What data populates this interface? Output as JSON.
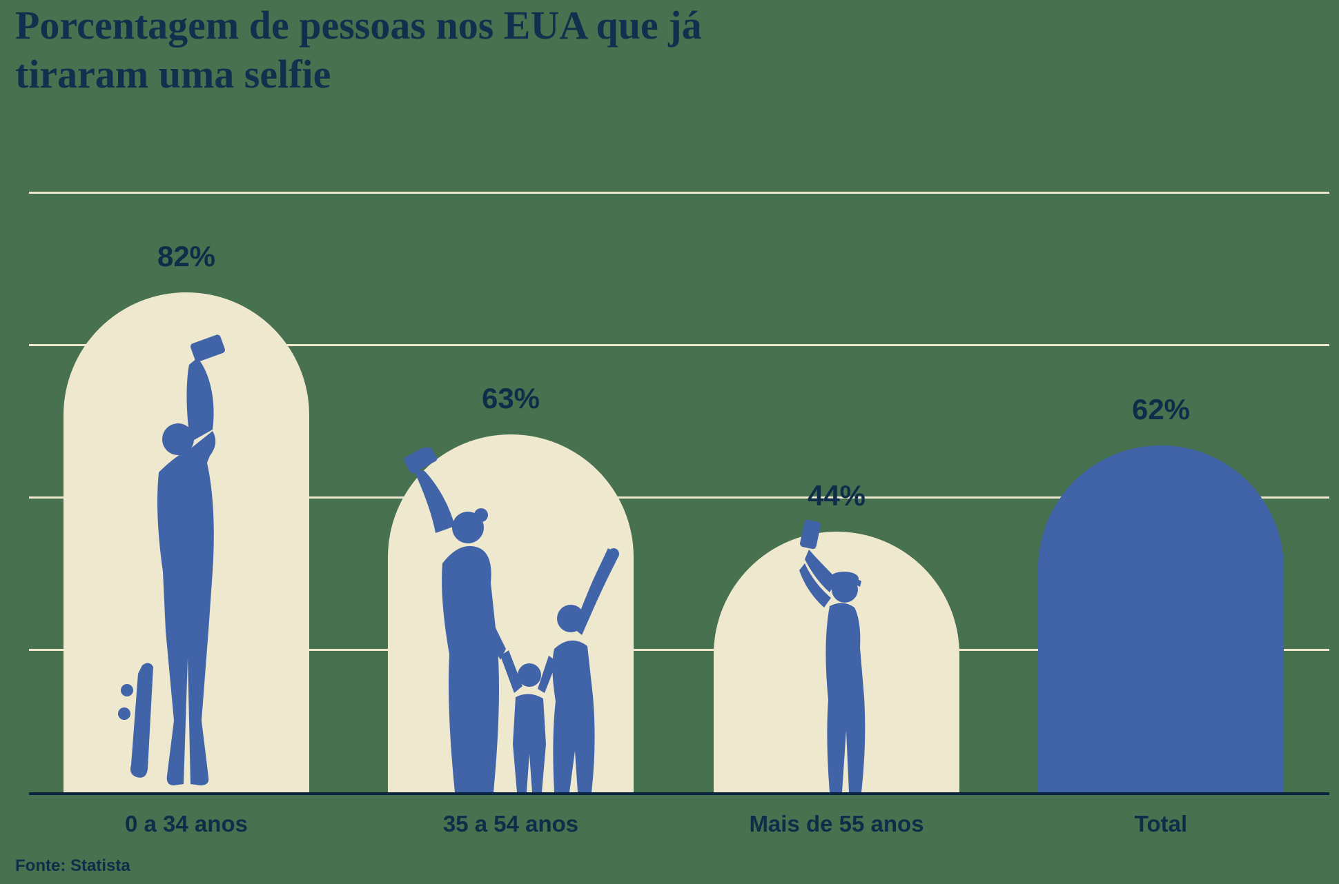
{
  "title": {
    "line1": "Porcentagem de pessoas nos EUA que já",
    "line2": "tiraram uma selfie"
  },
  "source": "Fonte: Statista",
  "colors": {
    "background_green": "#48714F",
    "bar_cream": "#EEE8CF",
    "bar_blue": "#4164A9",
    "text_navy": "#0F2C49",
    "axis_navy": "#0D2440"
  },
  "chart_data": {
    "type": "bar",
    "title": "Porcentagem de pessoas nos EUA que já tiraram uma selfie",
    "categories": [
      "0 a 34 anos",
      "35 a 54 anos",
      "Mais de 55 anos",
      "Total"
    ],
    "values": [
      82,
      63,
      44,
      62
    ],
    "value_labels": [
      "82%",
      "63%",
      "44%",
      "62%"
    ],
    "unit": "%",
    "ylim": [
      0,
      100
    ],
    "gridlines_percent": [
      25,
      50,
      75,
      100
    ],
    "grid": true,
    "legend": false,
    "xlabel": "",
    "ylabel": "",
    "bar_styles": [
      "cream",
      "cream",
      "cream",
      "blue"
    ],
    "silhouettes": [
      "selfie-skateboarder",
      "selfie-family",
      "selfie-senior",
      null
    ],
    "source": "Fonte: Statista"
  }
}
